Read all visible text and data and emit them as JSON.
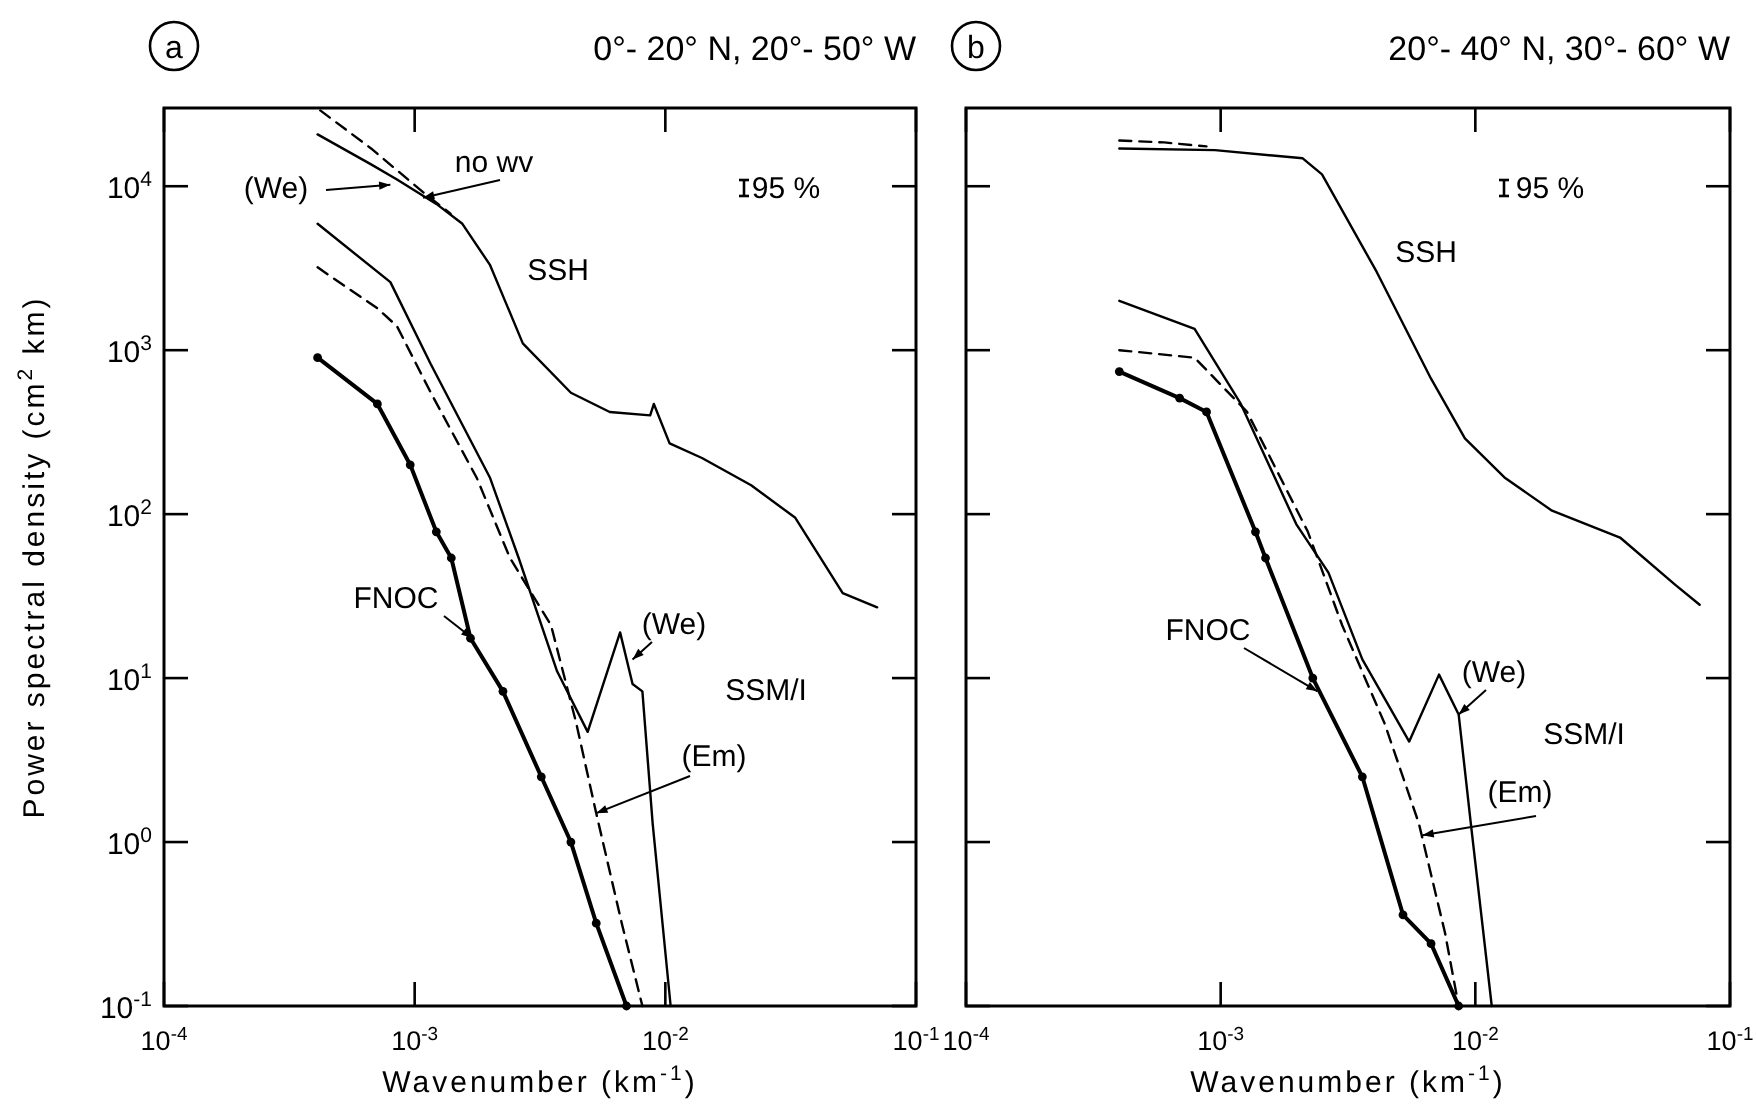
{
  "chart_data": [
    {
      "type": "line",
      "title": "0°- 20° N,  20°- 50° W",
      "subtitle": "a",
      "xlabel": "Wavenumber  (km$^{-1}$)",
      "ylabel": "Power spectral density  (cm$^{2}$ km)",
      "log": "xy",
      "grid": false,
      "xlim": [
        0.0001,
        0.1
      ],
      "ylim": [
        0.1,
        30000
      ],
      "xticks": [
        {
          "value": 0.0001,
          "label": "10$^{-4}$"
        },
        {
          "value": 0.001,
          "label": "10$^{-3}$"
        },
        {
          "value": 0.01,
          "label": "10$^{-2}$"
        },
        {
          "value": 0.1,
          "label": "10$^{-1}$"
        }
      ],
      "yticks": [
        {
          "value": 0.1,
          "label": "10$^{-1}$"
        },
        {
          "value": 1,
          "label": "10$^{0}$"
        },
        {
          "value": 10,
          "label": "10$^{1}$"
        },
        {
          "value": 100,
          "label": "10$^{2}$"
        },
        {
          "value": 1000,
          "label": "10$^{3}$"
        },
        {
          "value": 10000,
          "label": "10$^{4}$"
        }
      ],
      "series": [
        {
          "name": "SSH",
          "color": "#000000",
          "line_style": "solid",
          "x": [
            0.00041,
            0.00067,
            0.00085,
            0.00122,
            0.00155,
            0.002,
            0.0027,
            0.0042,
            0.006,
            0.0087,
            0.009,
            0.0104,
            0.014,
            0.022,
            0.033,
            0.051,
            0.07
          ],
          "values": [
            20700,
            13600,
            11000,
            7800,
            5900,
            3300,
            1100,
            550,
            420,
            400,
            470,
            270,
            220,
            150,
            95,
            33,
            27
          ]
        },
        {
          "color": "#000000",
          "line_style": "dashed",
          "x": [
            0.00042,
            0.00067,
            0.00108,
            0.00139
          ],
          "values": [
            29000,
            17000,
            9200,
            6800
          ]
        },
        {
          "name": "SSM/I",
          "color": "#000000",
          "line_style": "solid",
          "x": [
            0.00041,
            0.0008,
            0.00116,
            0.002,
            0.0026,
            0.0037,
            0.0049,
            0.0066,
            0.0074,
            0.0081,
            0.0089,
            0.0105
          ],
          "values": [
            5900,
            2600,
            820,
            166,
            54,
            11,
            4.7,
            19,
            9.2,
            8.3,
            1.3,
            0.1
          ]
        },
        {
          "color": "#000000",
          "line_style": "dashed",
          "x": [
            0.00041,
            0.00071,
            0.00085,
            0.00116,
            0.00177,
            0.0024,
            0.0035,
            0.0044,
            0.0053,
            0.0067,
            0.0081
          ],
          "values": [
            3200,
            1800,
            1400,
            550,
            166,
            54,
            21,
            5.4,
            1.5,
            0.32,
            0.1
          ]
        },
        {
          "color": "#000000",
          "line_style": "solid",
          "marker": "circle",
          "x": [
            0.00041,
            0.00071,
            0.00096,
            0.00122,
            0.0014,
            0.00167,
            0.00225,
            0.0032,
            0.0042,
            0.0053,
            0.007
          ],
          "values": [
            900,
            470,
            200,
            78,
            54,
            17.5,
            8.3,
            2.5,
            1,
            0.32,
            0.1
          ]
        }
      ],
      "annotations": [
        "95 %",
        {
          "text": "(We)",
          "x": 0.0008,
          "y": 10200
        },
        {
          "text": "no wv",
          "x": 0.00108,
          "y": 8500
        },
        {
          "text": "(We)",
          "x": 0.0074,
          "y": 13
        },
        {
          "text": "(Em)",
          "x": 0.0053,
          "y": 1.5
        },
        {
          "text": "FNOC",
          "x": 0.0017,
          "y": 17.5
        }
      ]
    },
    {
      "type": "line",
      "title": "20°- 40° N,  30°- 60° W",
      "subtitle": "b",
      "xlabel": "Wavenumber  (km$^{-1}$)",
      "log": "xy",
      "grid": false,
      "tick_labels": "x",
      "xlim": [
        0.0001,
        0.1
      ],
      "ylim": [
        0.1,
        30000
      ],
      "xticks": [
        {
          "value": 0.0001,
          "label": "10$^{-4}$"
        },
        {
          "value": 0.001,
          "label": "10$^{-3}$"
        },
        {
          "value": 0.01,
          "label": "10$^{-2}$"
        },
        {
          "value": 0.1,
          "label": "10$^{-1}$"
        }
      ],
      "yticks": [
        0.1,
        1,
        10,
        100,
        1000,
        10000
      ],
      "series": [
        {
          "name": "SSH",
          "color": "#000000",
          "line_style": "solid",
          "x": [
            0.0004,
            0.00095,
            0.0021,
            0.0025,
            0.0041,
            0.0067,
            0.0091,
            0.0131,
            0.02,
            0.037,
            0.061,
            0.076
          ],
          "values": [
            17000,
            16600,
            14800,
            11800,
            3000,
            670,
            290,
            166,
            105,
            72,
            37,
            28
          ]
        },
        {
          "color": "#000000",
          "line_style": "dashed",
          "x": [
            0.0004,
            0.0006,
            0.00088
          ],
          "values": [
            19000,
            18500,
            17500
          ]
        },
        {
          "name": "SSM/I",
          "color": "#000000",
          "line_style": "solid",
          "x": [
            0.0004,
            0.00079,
            0.0012,
            0.00198,
            0.00265,
            0.0036,
            0.0055,
            0.0072,
            0.0086,
            0.0096,
            0.0116
          ],
          "values": [
            2000,
            1350,
            470,
            87,
            44,
            13,
            4.1,
            10.5,
            6,
            1.3,
            0.1
          ]
        },
        {
          "color": "#000000",
          "line_style": "dashed",
          "x": [
            0.0004,
            0.00079,
            0.00127,
            0.0022,
            0.003,
            0.0044,
            0.006,
            0.0076,
            0.0086
          ],
          "values": [
            1000,
            900,
            420,
            78,
            21,
            5.3,
            1.3,
            0.28,
            0.1
          ]
        },
        {
          "color": "#000000",
          "line_style": "solid",
          "marker": "circle",
          "x": [
            0.0004,
            0.00069,
            0.00088,
            0.00137,
            0.0015,
            0.0023,
            0.0036,
            0.0052,
            0.0067,
            0.0086
          ],
          "values": [
            740,
            510,
            420,
            78,
            54,
            10,
            2.5,
            0.36,
            0.24,
            0.1
          ]
        }
      ],
      "annotations": [
        "95 %",
        {
          "text": "(We)",
          "x": 0.0086,
          "y": 6
        },
        {
          "text": "(Em)",
          "x": 0.0062,
          "y": 1.1
        },
        {
          "text": "FNOC",
          "x": 0.0024,
          "y": 8.3
        }
      ]
    }
  ]
}
